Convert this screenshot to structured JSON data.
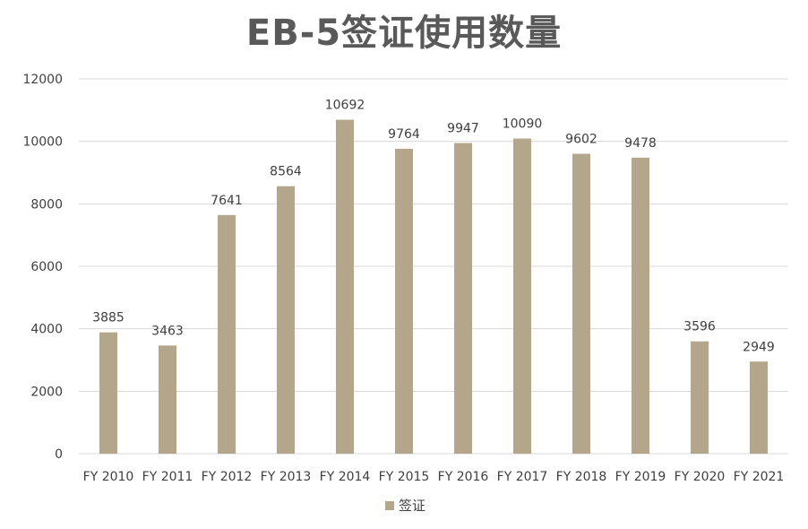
{
  "chart_data": {
    "type": "bar",
    "title": "EB-5签证使用数量",
    "categories": [
      "FY 2010",
      "FY 2011",
      "FY 2012",
      "FY 2013",
      "FY 2014",
      "FY 2015",
      "FY 2016",
      "FY 2017",
      "FY 2018",
      "FY 2019",
      "FY 2020",
      "FY 2021"
    ],
    "series": [
      {
        "name": "签证",
        "values": [
          3885,
          3463,
          7641,
          8564,
          10692,
          9764,
          9947,
          10090,
          9602,
          9478,
          3596,
          2949
        ],
        "color": "#b3a68a"
      }
    ],
    "ylim": [
      0,
      12000
    ],
    "yticks": [
      0,
      2000,
      4000,
      6000,
      8000,
      10000,
      12000
    ],
    "grid": true,
    "legend_position": "bottom",
    "data_labels": true,
    "gridline_color": "#d9d9d9"
  }
}
